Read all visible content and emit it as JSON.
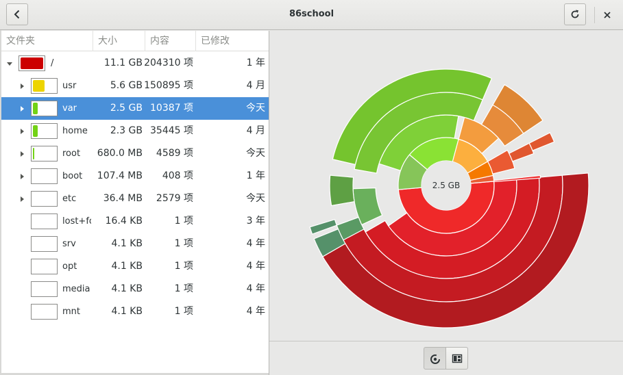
{
  "window": {
    "title": "86school"
  },
  "colors": {
    "selection": "#4a90d9",
    "root": "#cc0000",
    "usr": "#edd400",
    "green": "#73d216"
  },
  "columns": {
    "folder": "文件夹",
    "size": "大小",
    "items": "内容",
    "modified": "已修改"
  },
  "rows": [
    {
      "name": "/",
      "size": "11.1 GB",
      "items": "204310 项",
      "modified": "1 年",
      "expander": "expanded",
      "fill_fraction": 1.0,
      "color": "#cc0000",
      "level": 0
    },
    {
      "name": "usr",
      "size": "5.6 GB",
      "items": "150895 项",
      "modified": "4 月",
      "expander": "collapsed",
      "fill_fraction": 0.5,
      "color": "#edd400",
      "level": 1
    },
    {
      "name": "var",
      "size": "2.5 GB",
      "items": "10387 项",
      "modified": "今天",
      "expander": "collapsed",
      "fill_fraction": 0.22,
      "color": "#73d216",
      "level": 1,
      "selected": true
    },
    {
      "name": "home",
      "size": "2.3 GB",
      "items": "35445 项",
      "modified": "4 月",
      "expander": "collapsed",
      "fill_fraction": 0.2,
      "color": "#73d216",
      "level": 1
    },
    {
      "name": "root",
      "size": "680.0 MB",
      "items": "4589 项",
      "modified": "今天",
      "expander": "collapsed",
      "fill_fraction": 0.06,
      "color": "#73d216",
      "level": 1
    },
    {
      "name": "boot",
      "size": "107.4 MB",
      "items": "408 项",
      "modified": "1 年",
      "expander": "collapsed",
      "fill_fraction": 0.0,
      "color": "#73d216",
      "level": 1
    },
    {
      "name": "etc",
      "size": "36.4 MB",
      "items": "2579 项",
      "modified": "今天",
      "expander": "collapsed",
      "fill_fraction": 0.0,
      "color": "#73d216",
      "level": 1
    },
    {
      "name": "lost+fo",
      "size": "16.4 KB",
      "items": "1 项",
      "modified": "3 年",
      "expander": "none",
      "fill_fraction": 0.0,
      "color": "#73d216",
      "level": 1
    },
    {
      "name": "srv",
      "size": "4.1 KB",
      "items": "1 项",
      "modified": "4 年",
      "expander": "none",
      "fill_fraction": 0.0,
      "color": "#73d216",
      "level": 1
    },
    {
      "name": "opt",
      "size": "4.1 KB",
      "items": "1 项",
      "modified": "4 年",
      "expander": "none",
      "fill_fraction": 0.0,
      "color": "#73d216",
      "level": 1
    },
    {
      "name": "media",
      "size": "4.1 KB",
      "items": "1 项",
      "modified": "4 年",
      "expander": "none",
      "fill_fraction": 0.0,
      "color": "#73d216",
      "level": 1
    },
    {
      "name": "mnt",
      "size": "4.1 KB",
      "items": "1 项",
      "modified": "4 年",
      "expander": "none",
      "fill_fraction": 0.0,
      "color": "#73d216",
      "level": 1
    }
  ],
  "chart": {
    "center_label": "2.5 GB"
  },
  "view_toggle": {
    "rings": "rings-chart-icon",
    "treemap": "treemap-chart-icon",
    "active": "rings"
  }
}
